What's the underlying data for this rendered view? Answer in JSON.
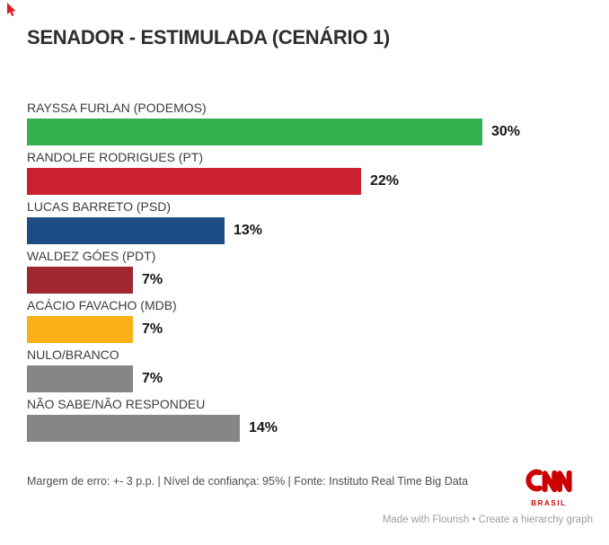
{
  "title": "SENADOR - ESTIMULADA (CENÁRIO 1)",
  "chart_data": {
    "type": "bar",
    "orientation": "horizontal",
    "title": "SENADOR - ESTIMULADA (CENÁRIO 1)",
    "categories": [
      "RAYSSA FURLAN (PODEMOS)",
      "RANDOLFE RODRIGUES (PT)",
      "LUCAS BARRETO (PSD)",
      "WALDEZ GÓES (PDT)",
      "ACÁCIO FAVACHO (MDB)",
      "NULO/BRANCO",
      "NÃO SABE/NÃO RESPONDEU"
    ],
    "values": [
      30,
      22,
      13,
      7,
      7,
      7,
      14
    ],
    "value_suffix": "%",
    "bar_colors": [
      "#34b14e",
      "#cb212e",
      "#1e4d86",
      "#a0262f",
      "#fcaf17",
      "#868686",
      "#868686"
    ],
    "xlim": [
      0,
      30
    ],
    "grid": false,
    "legend": false,
    "value_label_position": "end-of-bar"
  },
  "footer": {
    "note": "Margem de erro: +- 3 p.p. | Nível de confiança: 95% | Fonte: Instituto Real Time Big Data",
    "logo": {
      "text": "CNN",
      "subtext": "BRASIL",
      "color": "#cc0000"
    },
    "attribution": {
      "made": "Made with Flourish",
      "separator": "•",
      "cta": "Create a hierarchy graph"
    }
  }
}
